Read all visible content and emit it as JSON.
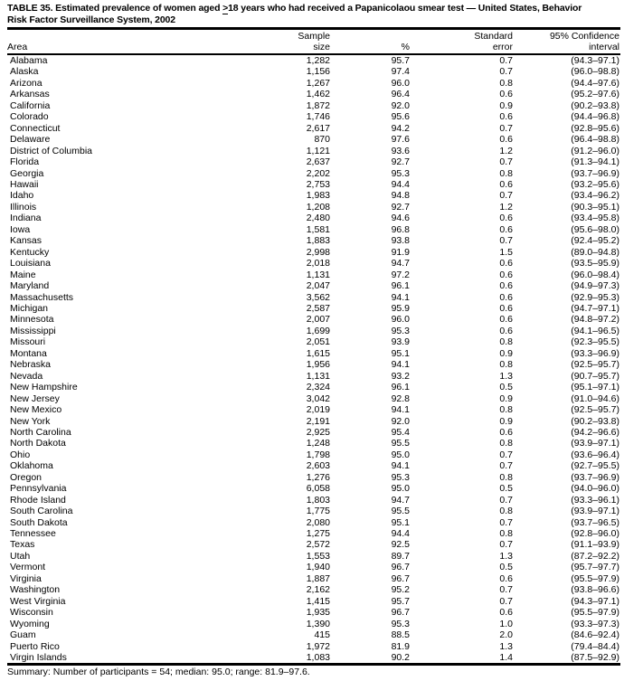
{
  "title": {
    "line1_pre": "TABLE 35. Estimated prevalence of women aged ",
    "gte_symbol": ">",
    "line1_post": "18 years who had received a Papanicolaou smear test — United States, Behavior",
    "line2": "Risk Factor Surveillance System, 2002"
  },
  "table": {
    "headers": {
      "area": "Area",
      "sample_line1": "Sample",
      "sample_line2": "size",
      "percent": "%",
      "se_line1": "Standard",
      "se_line2": "error",
      "ci_line1": "95% Confidence",
      "ci_line2": "interval"
    },
    "rows": [
      {
        "area": "Alabama",
        "sample_size": "1,282",
        "percent": "95.7",
        "standard_error": "0.7",
        "confidence_interval": "(94.3–97.1)"
      },
      {
        "area": "Alaska",
        "sample_size": "1,156",
        "percent": "97.4",
        "standard_error": "0.7",
        "confidence_interval": "(96.0–98.8)"
      },
      {
        "area": "Arizona",
        "sample_size": "1,267",
        "percent": "96.0",
        "standard_error": "0.8",
        "confidence_interval": "(94.4–97.6)"
      },
      {
        "area": "Arkansas",
        "sample_size": "1,462",
        "percent": "96.4",
        "standard_error": "0.6",
        "confidence_interval": "(95.2–97.6)"
      },
      {
        "area": "California",
        "sample_size": "1,872",
        "percent": "92.0",
        "standard_error": "0.9",
        "confidence_interval": "(90.2–93.8)"
      },
      {
        "area": "Colorado",
        "sample_size": "1,746",
        "percent": "95.6",
        "standard_error": "0.6",
        "confidence_interval": "(94.4–96.8)"
      },
      {
        "area": "Connecticut",
        "sample_size": "2,617",
        "percent": "94.2",
        "standard_error": "0.7",
        "confidence_interval": "(92.8–95.6)"
      },
      {
        "area": "Delaware",
        "sample_size": "870",
        "percent": "97.6",
        "standard_error": "0.6",
        "confidence_interval": "(96.4–98.8)"
      },
      {
        "area": "District of Columbia",
        "sample_size": "1,121",
        "percent": "93.6",
        "standard_error": "1.2",
        "confidence_interval": "(91.2–96.0)"
      },
      {
        "area": "Florida",
        "sample_size": "2,637",
        "percent": "92.7",
        "standard_error": "0.7",
        "confidence_interval": "(91.3–94.1)"
      },
      {
        "area": "Georgia",
        "sample_size": "2,202",
        "percent": "95.3",
        "standard_error": "0.8",
        "confidence_interval": "(93.7–96.9)"
      },
      {
        "area": "Hawaii",
        "sample_size": "2,753",
        "percent": "94.4",
        "standard_error": "0.6",
        "confidence_interval": "(93.2–95.6)"
      },
      {
        "area": "Idaho",
        "sample_size": "1,983",
        "percent": "94.8",
        "standard_error": "0.7",
        "confidence_interval": "(93.4–96.2)"
      },
      {
        "area": "Illinois",
        "sample_size": "1,208",
        "percent": "92.7",
        "standard_error": "1.2",
        "confidence_interval": "(90.3–95.1)"
      },
      {
        "area": "Indiana",
        "sample_size": "2,480",
        "percent": "94.6",
        "standard_error": "0.6",
        "confidence_interval": "(93.4–95.8)"
      },
      {
        "area": "Iowa",
        "sample_size": "1,581",
        "percent": "96.8",
        "standard_error": "0.6",
        "confidence_interval": "(95.6–98.0)"
      },
      {
        "area": "Kansas",
        "sample_size": "1,883",
        "percent": "93.8",
        "standard_error": "0.7",
        "confidence_interval": "(92.4–95.2)"
      },
      {
        "area": "Kentucky",
        "sample_size": "2,998",
        "percent": "91.9",
        "standard_error": "1.5",
        "confidence_interval": "(89.0–94.8)"
      },
      {
        "area": "Louisiana",
        "sample_size": "2,018",
        "percent": "94.7",
        "standard_error": "0.6",
        "confidence_interval": "(93.5–95.9)"
      },
      {
        "area": "Maine",
        "sample_size": "1,131",
        "percent": "97.2",
        "standard_error": "0.6",
        "confidence_interval": "(96.0–98.4)"
      },
      {
        "area": "Maryland",
        "sample_size": "2,047",
        "percent": "96.1",
        "standard_error": "0.6",
        "confidence_interval": "(94.9–97.3)"
      },
      {
        "area": "Massachusetts",
        "sample_size": "3,562",
        "percent": "94.1",
        "standard_error": "0.6",
        "confidence_interval": "(92.9–95.3)"
      },
      {
        "area": "Michigan",
        "sample_size": "2,587",
        "percent": "95.9",
        "standard_error": "0.6",
        "confidence_interval": "(94.7–97.1)"
      },
      {
        "area": "Minnesota",
        "sample_size": "2,007",
        "percent": "96.0",
        "standard_error": "0.6",
        "confidence_interval": "(94.8–97.2)"
      },
      {
        "area": "Mississippi",
        "sample_size": "1,699",
        "percent": "95.3",
        "standard_error": "0.6",
        "confidence_interval": "(94.1–96.5)"
      },
      {
        "area": "Missouri",
        "sample_size": "2,051",
        "percent": "93.9",
        "standard_error": "0.8",
        "confidence_interval": "(92.3–95.5)"
      },
      {
        "area": "Montana",
        "sample_size": "1,615",
        "percent": "95.1",
        "standard_error": "0.9",
        "confidence_interval": "(93.3–96.9)"
      },
      {
        "area": "Nebraska",
        "sample_size": "1,956",
        "percent": "94.1",
        "standard_error": "0.8",
        "confidence_interval": "(92.5–95.7)"
      },
      {
        "area": "Nevada",
        "sample_size": "1,131",
        "percent": "93.2",
        "standard_error": "1.3",
        "confidence_interval": "(90.7–95.7)"
      },
      {
        "area": "New Hampshire",
        "sample_size": "2,324",
        "percent": "96.1",
        "standard_error": "0.5",
        "confidence_interval": "(95.1–97.1)"
      },
      {
        "area": "New Jersey",
        "sample_size": "3,042",
        "percent": "92.8",
        "standard_error": "0.9",
        "confidence_interval": "(91.0–94.6)"
      },
      {
        "area": "New Mexico",
        "sample_size": "2,019",
        "percent": "94.1",
        "standard_error": "0.8",
        "confidence_interval": "(92.5–95.7)"
      },
      {
        "area": "New York",
        "sample_size": "2,191",
        "percent": "92.0",
        "standard_error": "0.9",
        "confidence_interval": "(90.2–93.8)"
      },
      {
        "area": "North Carolina",
        "sample_size": "2,925",
        "percent": "95.4",
        "standard_error": "0.6",
        "confidence_interval": "(94.2–96.6)"
      },
      {
        "area": "North Dakota",
        "sample_size": "1,248",
        "percent": "95.5",
        "standard_error": "0.8",
        "confidence_interval": "(93.9–97.1)"
      },
      {
        "area": "Ohio",
        "sample_size": "1,798",
        "percent": "95.0",
        "standard_error": "0.7",
        "confidence_interval": "(93.6–96.4)"
      },
      {
        "area": "Oklahoma",
        "sample_size": "2,603",
        "percent": "94.1",
        "standard_error": "0.7",
        "confidence_interval": "(92.7–95.5)"
      },
      {
        "area": "Oregon",
        "sample_size": "1,276",
        "percent": "95.3",
        "standard_error": "0.8",
        "confidence_interval": "(93.7–96.9)"
      },
      {
        "area": "Pennsylvania",
        "sample_size": "6,058",
        "percent": "95.0",
        "standard_error": "0.5",
        "confidence_interval": "(94.0–96.0)"
      },
      {
        "area": "Rhode Island",
        "sample_size": "1,803",
        "percent": "94.7",
        "standard_error": "0.7",
        "confidence_interval": "(93.3–96.1)"
      },
      {
        "area": "South Carolina",
        "sample_size": "1,775",
        "percent": "95.5",
        "standard_error": "0.8",
        "confidence_interval": "(93.9–97.1)"
      },
      {
        "area": "South Dakota",
        "sample_size": "2,080",
        "percent": "95.1",
        "standard_error": "0.7",
        "confidence_interval": "(93.7–96.5)"
      },
      {
        "area": "Tennessee",
        "sample_size": "1,275",
        "percent": "94.4",
        "standard_error": "0.8",
        "confidence_interval": "(92.8–96.0)"
      },
      {
        "area": "Texas",
        "sample_size": "2,572",
        "percent": "92.5",
        "standard_error": "0.7",
        "confidence_interval": "(91.1–93.9)"
      },
      {
        "area": "Utah",
        "sample_size": "1,553",
        "percent": "89.7",
        "standard_error": "1.3",
        "confidence_interval": "(87.2–92.2)"
      },
      {
        "area": "Vermont",
        "sample_size": "1,940",
        "percent": "96.7",
        "standard_error": "0.5",
        "confidence_interval": "(95.7–97.7)"
      },
      {
        "area": "Virginia",
        "sample_size": "1,887",
        "percent": "96.7",
        "standard_error": "0.6",
        "confidence_interval": "(95.5–97.9)"
      },
      {
        "area": "Washington",
        "sample_size": "2,162",
        "percent": "95.2",
        "standard_error": "0.7",
        "confidence_interval": "(93.8–96.6)"
      },
      {
        "area": "West Virginia",
        "sample_size": "1,415",
        "percent": "95.7",
        "standard_error": "0.7",
        "confidence_interval": "(94.3–97.1)"
      },
      {
        "area": "Wisconsin",
        "sample_size": "1,935",
        "percent": "96.7",
        "standard_error": "0.6",
        "confidence_interval": "(95.5–97.9)"
      },
      {
        "area": "Wyoming",
        "sample_size": "1,390",
        "percent": "95.3",
        "standard_error": "1.0",
        "confidence_interval": "(93.3–97.3)"
      },
      {
        "area": "Guam",
        "sample_size": "415",
        "percent": "88.5",
        "standard_error": "2.0",
        "confidence_interval": "(84.6–92.4)"
      },
      {
        "area": "Puerto Rico",
        "sample_size": "1,972",
        "percent": "81.9",
        "standard_error": "1.3",
        "confidence_interval": "(79.4–84.4)"
      },
      {
        "area": "Virgin Islands",
        "sample_size": "1,083",
        "percent": "90.2",
        "standard_error": "1.4",
        "confidence_interval": "(87.5–92.9)"
      }
    ]
  },
  "summary": "Summary: Number of participants = 54; median: 95.0; range: 81.9–97.6."
}
